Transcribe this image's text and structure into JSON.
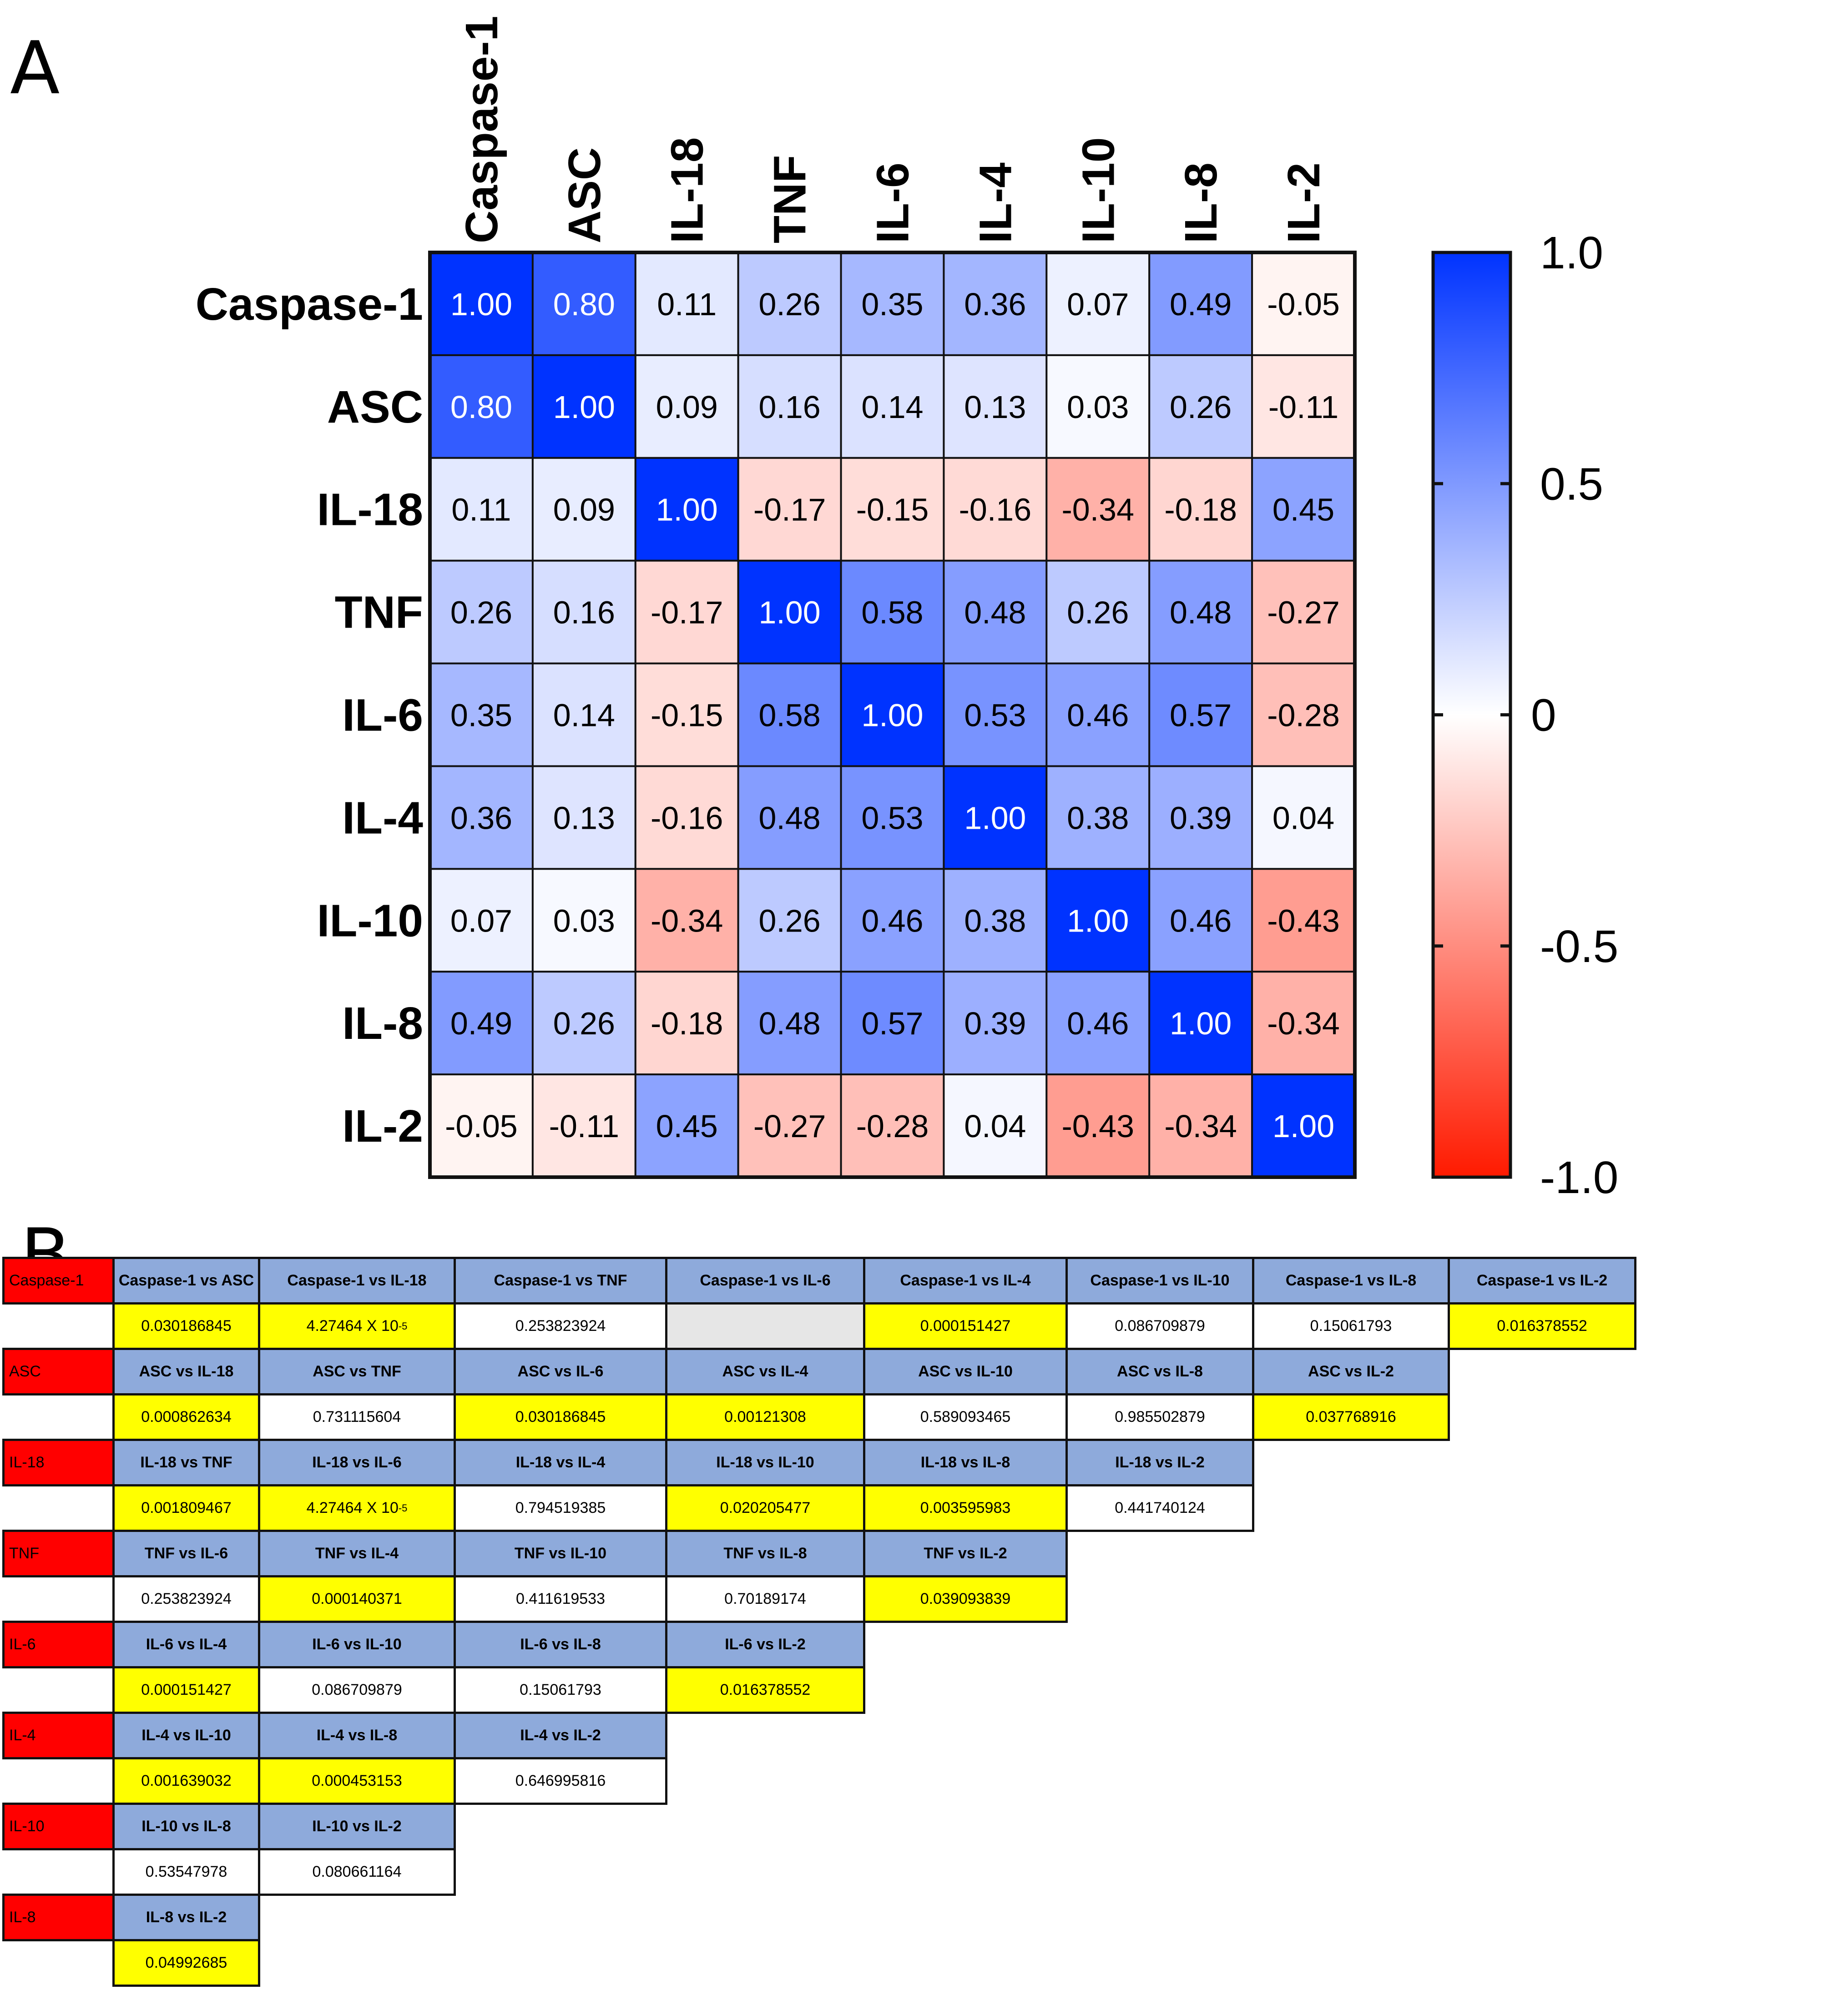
{
  "panels": {
    "a": "A",
    "b": "B"
  },
  "colors": {
    "negative": "#ff1a00",
    "zero": "#ffffff",
    "positive": "#0033ff",
    "pair_header": "#8eaadb",
    "significant": "#ffff00",
    "variable_label": "#ff0000",
    "empty": "#e6e6e6",
    "plain": "#ffffff"
  },
  "chart_data": {
    "type": "heatmap",
    "title": "",
    "variables": [
      "Caspase-1",
      "ASC",
      "IL-18",
      "TNF",
      "IL-6",
      "IL-4",
      "IL-10",
      "IL-8",
      "IL-2"
    ],
    "value_labels": [
      [
        "1.00",
        "0.80",
        "0.11",
        "0.26",
        "0.35",
        "0.36",
        "0.07",
        "0.49",
        "-0.05"
      ],
      [
        "0.80",
        "1.00",
        "0.09",
        "0.16",
        "0.14",
        "0.13",
        "0.03",
        "0.26",
        "-0.11"
      ],
      [
        "0.11",
        "0.09",
        "1.00",
        "-0.17",
        "-0.15",
        "-0.16",
        "-0.34",
        "-0.18",
        "0.45"
      ],
      [
        "0.26",
        "0.16",
        "-0.17",
        "1.00",
        "0.58",
        "0.48",
        "0.26",
        "0.48",
        "-0.27"
      ],
      [
        "0.35",
        "0.14",
        "-0.15",
        "0.58",
        "1.00",
        "0.53",
        "0.46",
        "0.57",
        "-0.28"
      ],
      [
        "0.36",
        "0.13",
        "-0.16",
        "0.48",
        "0.53",
        "1.00",
        "0.38",
        "0.39",
        "0.04"
      ],
      [
        "0.07",
        "0.03",
        "-0.34",
        "0.26",
        "0.46",
        "0.38",
        "1.00",
        "0.46",
        "-0.43"
      ],
      [
        "0.49",
        "0.26",
        "-0.18",
        "0.48",
        "0.57",
        "0.39",
        "0.46",
        "1.00",
        "-0.34"
      ],
      [
        "-0.05",
        "-0.11",
        "0.45",
        "-0.27",
        "-0.28",
        "0.04",
        "-0.43",
        "-0.34",
        "1.00"
      ]
    ],
    "colorbar": {
      "range": [
        -1.0,
        1.0
      ],
      "tick_labels": [
        "1.0",
        "0.5",
        "0",
        "-0.5",
        "-1.0"
      ]
    }
  },
  "pvalue_table": {
    "rows": [
      {
        "label": "Caspase-1",
        "cells": [
          {
            "pair": "Caspase-1 vs ASC",
            "p": "0.030186845",
            "sig": true
          },
          {
            "pair": "Caspase-1 vs IL-18",
            "p_base": "4.27464 X 10",
            "p_exp": "-5",
            "sig": true
          },
          {
            "pair": "Caspase-1 vs TNF",
            "p": "0.253823924",
            "sig": false
          },
          {
            "pair": "Caspase-1 vs IL-6",
            "p": "",
            "empty": true
          },
          {
            "pair": "Caspase-1 vs IL-4",
            "p": "0.000151427",
            "sig": true
          },
          {
            "pair": "Caspase-1 vs IL-10",
            "p": "0.086709879",
            "sig": false
          },
          {
            "pair": "Caspase-1 vs IL-8",
            "p": "0.15061793",
            "sig": false
          },
          {
            "pair": "Caspase-1 vs IL-2",
            "p": "0.016378552",
            "sig": true
          }
        ]
      },
      {
        "label": "ASC",
        "cells": [
          {
            "pair": "ASC vs IL-18",
            "p": "0.000862634",
            "sig": true
          },
          {
            "pair": "ASC vs TNF",
            "p": "0.731115604",
            "sig": false
          },
          {
            "pair": "ASC vs IL-6",
            "p": "0.030186845",
            "sig": true
          },
          {
            "pair": "ASC vs IL-4",
            "p": "0.00121308",
            "sig": true
          },
          {
            "pair": "ASC vs IL-10",
            "p": "0.589093465",
            "sig": false
          },
          {
            "pair": "ASC vs IL-8",
            "p": "0.985502879",
            "sig": false
          },
          {
            "pair": "ASC vs IL-2",
            "p": "0.037768916",
            "sig": true
          }
        ]
      },
      {
        "label": "IL-18",
        "cells": [
          {
            "pair": "IL-18 vs TNF",
            "p": "0.001809467",
            "sig": true
          },
          {
            "pair": "IL-18 vs IL-6",
            "p_base": "4.27464 X 10",
            "p_exp": "-5",
            "sig": true
          },
          {
            "pair": "IL-18 vs IL-4",
            "p": "0.794519385",
            "sig": false
          },
          {
            "pair": "IL-18 vs IL-10",
            "p": "0.020205477",
            "sig": true
          },
          {
            "pair": "IL-18 vs IL-8",
            "p": "0.003595983",
            "sig": true
          },
          {
            "pair": "IL-18 vs IL-2",
            "p": "0.441740124",
            "sig": false
          }
        ]
      },
      {
        "label": "TNF",
        "cells": [
          {
            "pair": "TNF vs IL-6",
            "p": "0.253823924",
            "sig": false
          },
          {
            "pair": "TNF vs IL-4",
            "p": "0.000140371",
            "sig": true
          },
          {
            "pair": "TNF vs IL-10",
            "p": "0.411619533",
            "sig": false
          },
          {
            "pair": "TNF vs IL-8",
            "p": "0.70189174",
            "sig": false
          },
          {
            "pair": "TNF vs IL-2",
            "p": "0.039093839",
            "sig": true
          }
        ]
      },
      {
        "label": "IL-6",
        "cells": [
          {
            "pair": "IL-6 vs IL-4",
            "p": "0.000151427",
            "sig": true
          },
          {
            "pair": "IL-6 vs IL-10",
            "p": "0.086709879",
            "sig": false
          },
          {
            "pair": "IL-6 vs IL-8",
            "p": "0.15061793",
            "sig": false
          },
          {
            "pair": "IL-6 vs IL-2",
            "p": "0.016378552",
            "sig": true
          }
        ]
      },
      {
        "label": "IL-4",
        "cells": [
          {
            "pair": "IL-4 vs IL-10",
            "p": "0.001639032",
            "sig": true
          },
          {
            "pair": "IL-4 vs IL-8",
            "p": "0.000453153",
            "sig": true
          },
          {
            "pair": "IL-4 vs IL-2",
            "p": "0.646995816",
            "sig": false
          }
        ]
      },
      {
        "label": "IL-10",
        "cells": [
          {
            "pair": "IL-10 vs IL-8",
            "p": "0.53547978",
            "sig": false
          },
          {
            "pair": "IL-10 vs IL-2",
            "p": "0.080661164",
            "sig": false
          }
        ]
      },
      {
        "label": "IL-8",
        "cells": [
          {
            "pair": "IL-8 vs IL-2",
            "p": "0.04992685",
            "sig": true
          }
        ]
      }
    ]
  }
}
